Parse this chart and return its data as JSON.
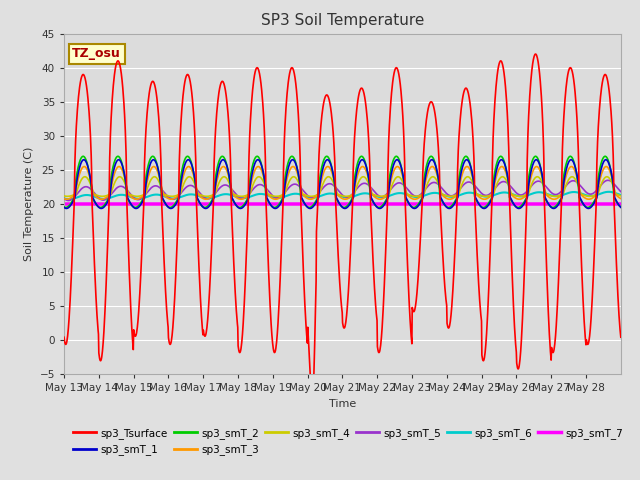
{
  "title": "SP3 Soil Temperature",
  "ylabel": "Soil Temperature (C)",
  "xlabel": "Time",
  "ylim": [
    -5,
    45
  ],
  "n_days": 16,
  "tz_label": "TZ_osu",
  "background_color": "#e0e0e0",
  "plot_bg_color": "#dcdcdc",
  "grid_color": "#ffffff",
  "x_tick_labels": [
    "May 13",
    "May 14",
    "May 15",
    "May 16",
    "May 17",
    "May 18",
    "May 19",
    "May 20",
    "May 21",
    "May 22",
    "May 23",
    "May 24",
    "May 25",
    "May 26",
    "May 27",
    "May 28"
  ],
  "series_colors": {
    "sp3_Tsurface": "#ff0000",
    "sp3_smT_1": "#0000cc",
    "sp3_smT_2": "#00cc00",
    "sp3_smT_3": "#ff9900",
    "sp3_smT_4": "#cccc00",
    "sp3_smT_5": "#9933cc",
    "sp3_smT_6": "#00cccc",
    "sp3_smT_7": "#ff00ff"
  },
  "series_linewidths": {
    "sp3_Tsurface": 1.2,
    "sp3_smT_1": 1.2,
    "sp3_smT_2": 1.2,
    "sp3_smT_3": 1.2,
    "sp3_smT_4": 1.2,
    "sp3_smT_5": 1.2,
    "sp3_smT_6": 1.5,
    "sp3_smT_7": 2.5
  }
}
